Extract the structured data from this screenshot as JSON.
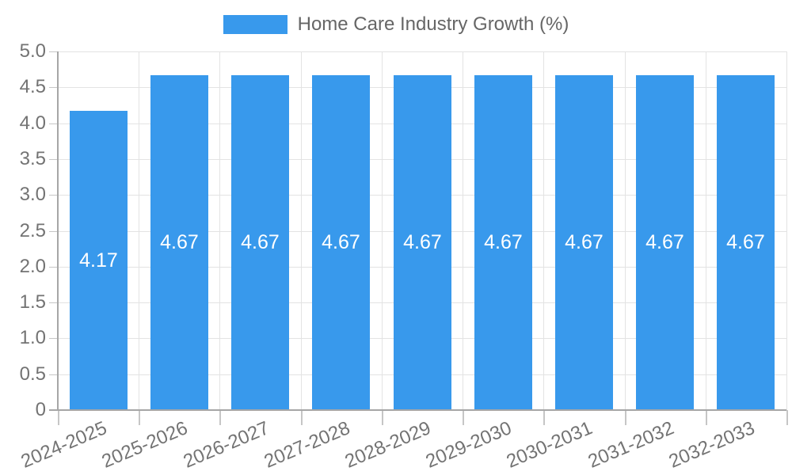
{
  "chart_data": {
    "type": "bar",
    "title": "",
    "legend": {
      "label": "Home Care Industry Growth (%)",
      "position": "top"
    },
    "categories": [
      "2024-2025",
      "2025-2026",
      "2026-2027",
      "2027-2028",
      "2028-2029",
      "2029-2030",
      "2030-2031",
      "2031-2032",
      "2032-2033"
    ],
    "values": [
      4.17,
      4.67,
      4.67,
      4.67,
      4.67,
      4.67,
      4.67,
      4.67,
      4.67
    ],
    "bar_value_labels": [
      "4.17",
      "4.67",
      "4.67",
      "4.67",
      "4.67",
      "4.67",
      "4.67",
      "4.67",
      "4.67"
    ],
    "xlabel": "",
    "ylabel": "",
    "ylim": [
      0,
      5
    ],
    "ytick_step": 0.5,
    "yticks": [
      {
        "value": 5.0,
        "label": "5.0"
      },
      {
        "value": 4.5,
        "label": "4.5"
      },
      {
        "value": 4.0,
        "label": "4.0"
      },
      {
        "value": 3.5,
        "label": "3.5"
      },
      {
        "value": 3.0,
        "label": "3.0"
      },
      {
        "value": 2.5,
        "label": "2.5"
      },
      {
        "value": 2.0,
        "label": "2.0"
      },
      {
        "value": 1.5,
        "label": "1.5"
      },
      {
        "value": 1.0,
        "label": "1.0"
      },
      {
        "value": 0.5,
        "label": "0.5"
      },
      {
        "value": 0.0,
        "label": "0"
      }
    ],
    "grid": true,
    "value_labels_position": "center-inside",
    "colors": {
      "bar": "#3899ec",
      "bar_value_label": "#ffffff",
      "legend_text": "#666666",
      "tick_text": "#737373",
      "gridline": "#e3e3e3",
      "axis_line": "#a6a6a6",
      "tick_mark": "#c6c6c6",
      "background": "#ffffff"
    }
  }
}
